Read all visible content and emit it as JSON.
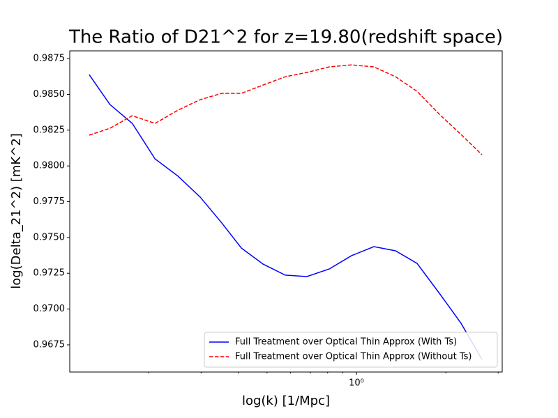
{
  "chart_data": {
    "type": "line",
    "title": "The Ratio of D21^2 for z=19.80(redshift space)",
    "x_label": "log(k) [1/Mpc]",
    "y_label": "log(Delta_21^2) [mK^2]",
    "x": [
      0.126,
      0.148,
      0.176,
      0.21,
      0.251,
      0.298,
      0.352,
      0.41,
      0.485,
      0.576,
      0.681,
      0.81,
      0.963,
      1.145,
      1.354,
      1.6,
      1.902,
      2.249,
      2.646
    ],
    "series": [
      {
        "name": "Full Treatment over Optical Thin Approx (With Ts)",
        "color": "#0000ff",
        "dash": "solid",
        "values": [
          0.98638,
          0.98429,
          0.98297,
          0.98049,
          0.97928,
          0.97782,
          0.97602,
          0.97426,
          0.97314,
          0.97237,
          0.97227,
          0.9728,
          0.97373,
          0.97436,
          0.97407,
          0.97319,
          0.9711,
          0.96901,
          0.96648
        ]
      },
      {
        "name": "Full Treatment over Optical Thin Approx (Without Ts)",
        "color": "#ff0000",
        "dash": "dashed",
        "values": [
          0.98215,
          0.98263,
          0.98351,
          0.98297,
          0.9839,
          0.98463,
          0.98507,
          0.98507,
          0.98565,
          0.98623,
          0.98653,
          0.98692,
          0.98706,
          0.98692,
          0.98623,
          0.98521,
          0.98361,
          0.9822,
          0.98078
        ]
      }
    ],
    "xscale": "log",
    "xlim": [
      0.1084,
      3.095
    ],
    "xticks": [
      {
        "value": 1,
        "label": "10⁰"
      }
    ],
    "xminorticks": [
      0.2,
      0.3,
      0.4,
      0.5,
      0.6,
      0.7,
      0.8,
      0.9,
      2,
      3
    ],
    "ylim": [
      0.9656,
      0.98804
    ],
    "yticks": [
      0.9675,
      {
        "value": 0.97,
        "label": "0.9700"
      },
      0.9725,
      {
        "value": 0.975,
        "label": "0.9750"
      },
      0.9775,
      {
        "value": 0.98,
        "label": "0.9800"
      },
      0.9825,
      {
        "value": 0.985,
        "label": "0.9850"
      },
      0.9875
    ],
    "grid": false,
    "legend": "lower-right"
  }
}
